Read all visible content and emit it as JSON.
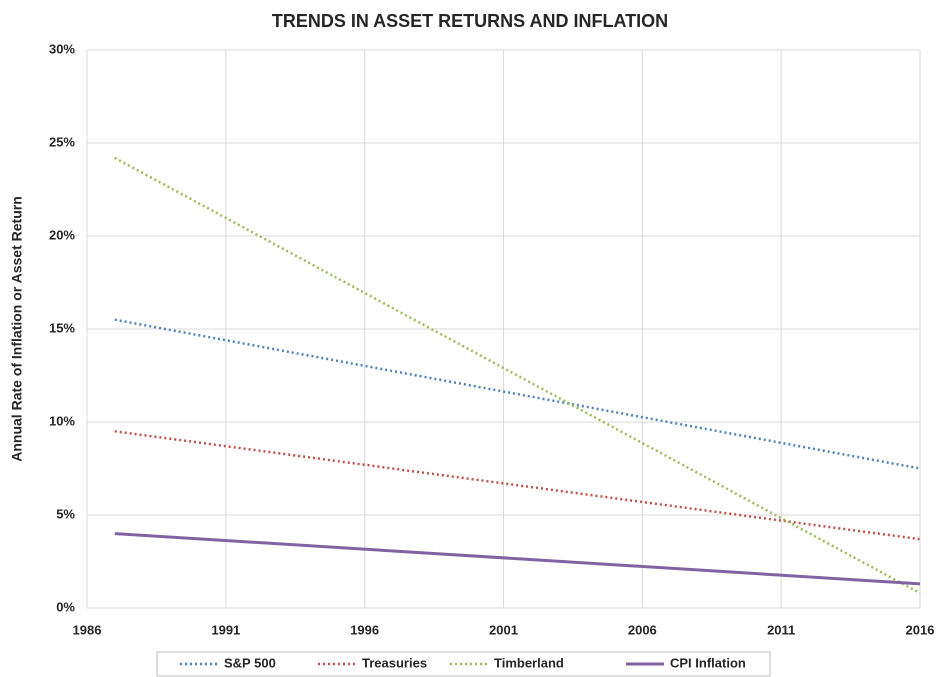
{
  "chart_data": {
    "type": "line",
    "title": "TRENDS IN ASSET RETURNS AND INFLATION",
    "y_label": "Annual Rate of Inflation or Asset Return",
    "x": [
      1987,
      2016
    ],
    "series": [
      {
        "name": "S&P 500",
        "color": "#4f81bd",
        "style": "dotted",
        "values": [
          15.5,
          7.5
        ]
      },
      {
        "name": "Treasuries",
        "color": "#c0504d",
        "style": "dotted",
        "values": [
          9.5,
          3.7
        ]
      },
      {
        "name": "Timberland",
        "color": "#9bbb59",
        "style": "dotted",
        "values": [
          24.2,
          0.8
        ]
      },
      {
        "name": "CPI Inflation",
        "color": "#8064a2",
        "style": "solid",
        "values": [
          4.0,
          1.3
        ]
      }
    ],
    "xlim": [
      1986,
      2016
    ],
    "xticks": [
      1986,
      1991,
      1996,
      2001,
      2006,
      2011,
      2016
    ],
    "ylim": [
      0,
      30
    ],
    "yticks": [
      {
        "value": 0,
        "label": "0%"
      },
      {
        "value": 5,
        "label": "5%"
      },
      {
        "value": 10,
        "label": "10%"
      },
      {
        "value": 15,
        "label": "15%"
      },
      {
        "value": 20,
        "label": "20%"
      },
      {
        "value": 25,
        "label": "25%"
      },
      {
        "value": 30,
        "label": "30%"
      }
    ],
    "grid": true,
    "legend": "bottom"
  }
}
